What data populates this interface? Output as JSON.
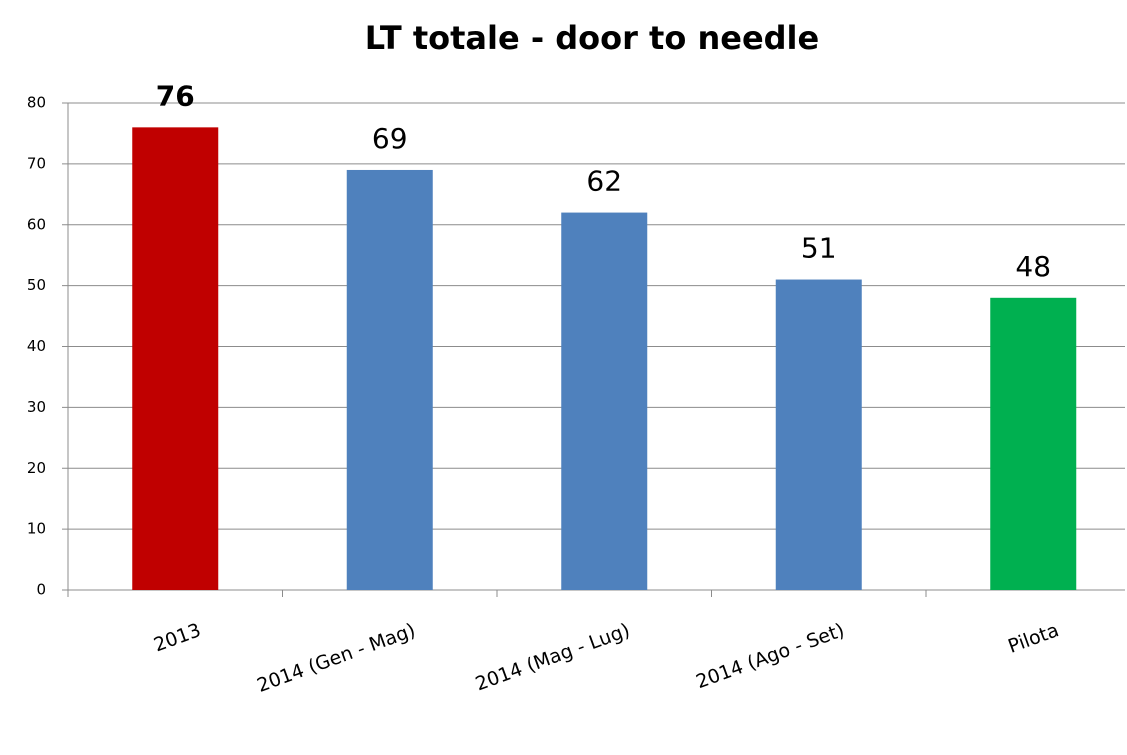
{
  "chart_data": {
    "type": "bar",
    "title": "LT totale - door to needle",
    "categories": [
      "2013",
      "2014 (Gen - Mag)",
      "2014 (Mag - Lug)",
      "2014 (Ago - Set)",
      "Pilota"
    ],
    "values": [
      76,
      69,
      62,
      51,
      48
    ],
    "colors": [
      "#c00000",
      "#4f81bd",
      "#4f81bd",
      "#4f81bd",
      "#00b050"
    ],
    "ylim": [
      0,
      80
    ],
    "yticks": [
      0,
      10,
      20,
      30,
      40,
      50,
      60,
      70,
      80
    ],
    "grid": true
  }
}
